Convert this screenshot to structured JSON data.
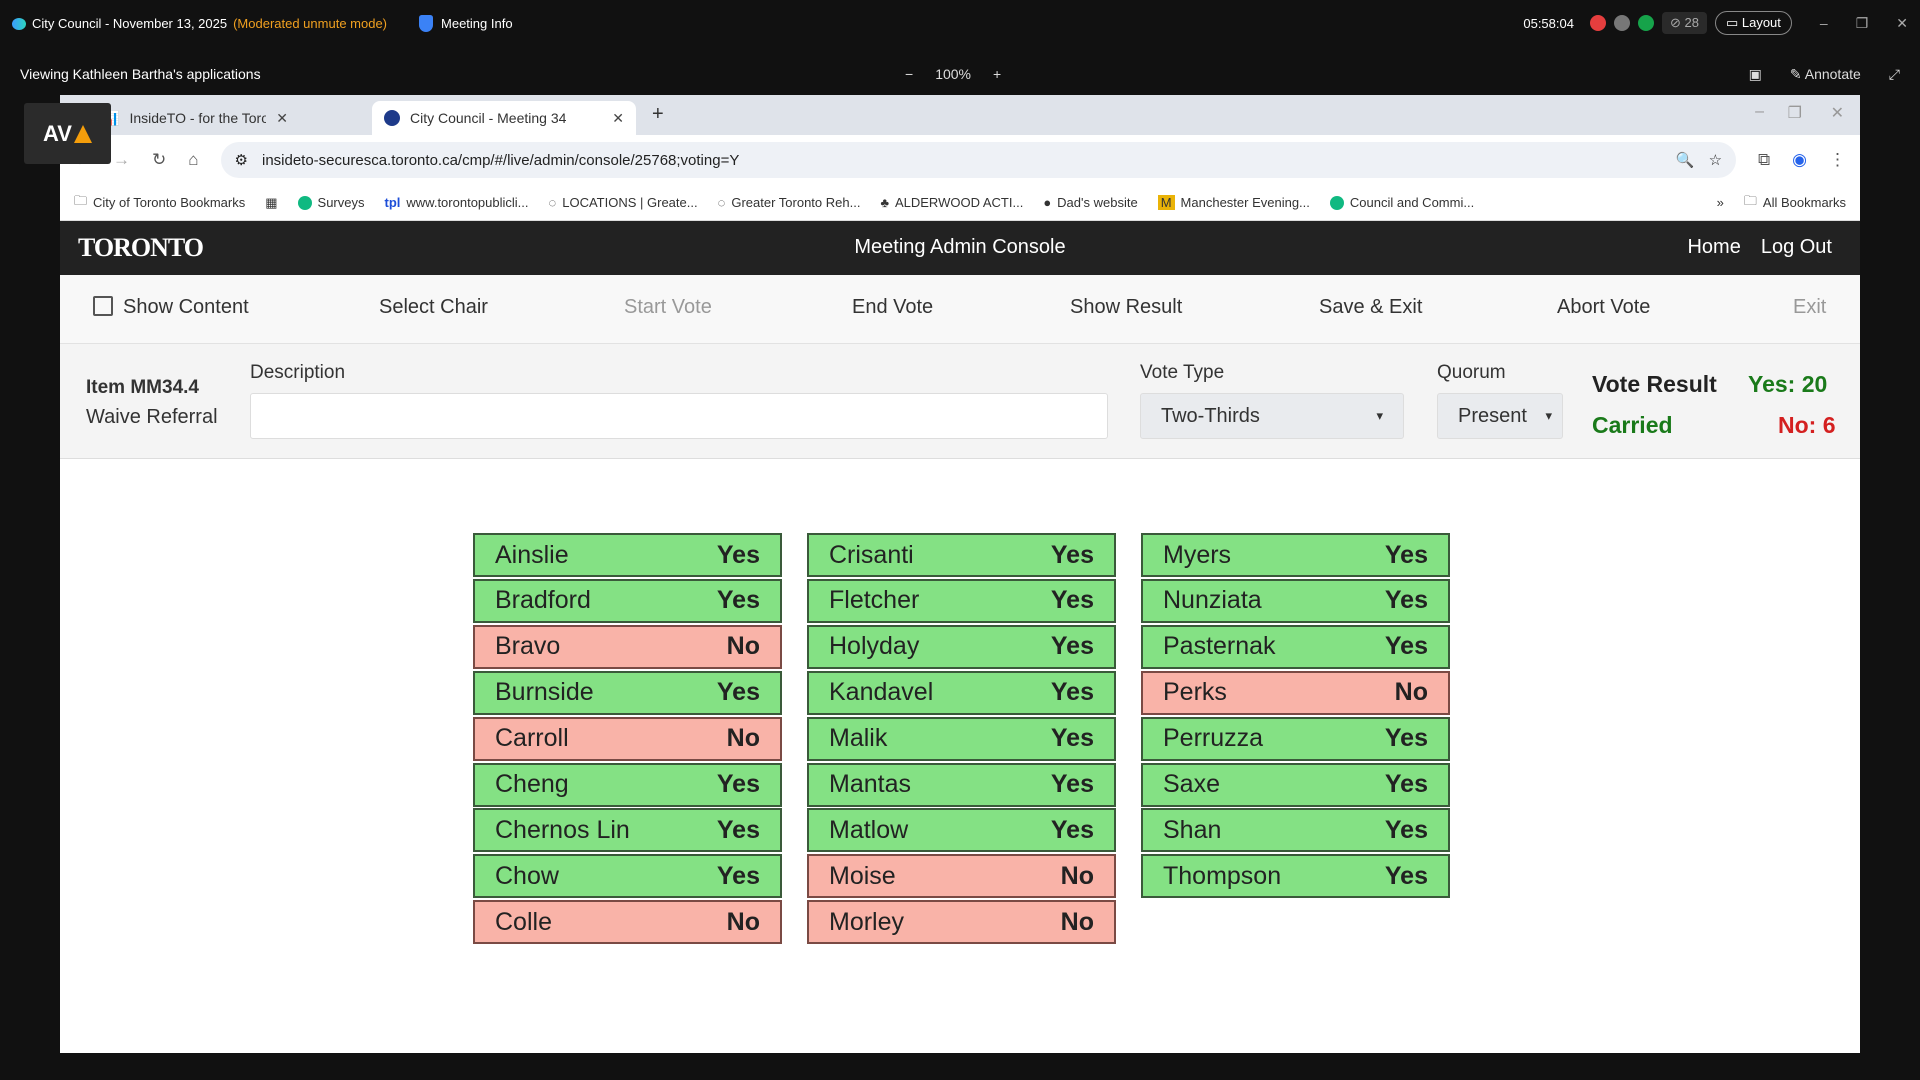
{
  "topbar": {
    "meeting": "City Council - November 13, 2025",
    "mode": "(Moderated unmute mode)",
    "meeting_info": "Meeting Info",
    "time": "05:58:04",
    "participants": "28",
    "layout": "Layout"
  },
  "viewbar": {
    "viewing": "Viewing Kathleen Bartha's applications",
    "zoom": "100%",
    "minus": "−",
    "plus": "+",
    "annotate": "Annotate"
  },
  "av_logo": "AV",
  "browser": {
    "tabs": [
      {
        "label": "InsideTO - for the Toronto Publ"
      },
      {
        "label": "City Council - Meeting 34"
      }
    ],
    "url": "insideto-securesca.toronto.ca/cmp/#/live/admin/console/25768;voting=Y",
    "bookmarks": [
      "City of Toronto Bookmarks",
      "Surveys",
      "www.torontopublicli...",
      "LOCATIONS | Greate...",
      "Greater Toronto Reh...",
      "ALDERWOOD ACTI...",
      "Dad's website",
      "Manchester Evening...",
      "Council and Commi..."
    ],
    "all_bookmarks": "All Bookmarks"
  },
  "console": {
    "logo": "TORONTO",
    "title": "Meeting Admin Console",
    "home": "Home",
    "logout": "Log Out",
    "actions": {
      "show_content": "Show Content",
      "select_chair": "Select Chair",
      "start_vote": "Start Vote",
      "end_vote": "End Vote",
      "show_result": "Show Result",
      "save_exit": "Save & Exit",
      "abort_vote": "Abort Vote",
      "exit": "Exit"
    },
    "item": {
      "id": "Item MM34.4",
      "name": "Waive Referral",
      "description_label": "Description",
      "description": "",
      "vote_type_label": "Vote Type",
      "vote_type": "Two-Thirds",
      "quorum_label": "Quorum",
      "quorum": "Present",
      "result_label": "Vote Result",
      "result": "Carried",
      "yes": "Yes: 20",
      "no": "No: 6"
    },
    "colors": {
      "yes_bg": "#84e184",
      "no_bg": "#f9b3a8",
      "carried": "#1a7a1a",
      "no_text": "#d42020"
    },
    "votes": [
      {
        "name": "Ainslie",
        "vote": "Yes"
      },
      {
        "name": "Bradford",
        "vote": "Yes"
      },
      {
        "name": "Bravo",
        "vote": "No"
      },
      {
        "name": "Burnside",
        "vote": "Yes"
      },
      {
        "name": "Carroll",
        "vote": "No"
      },
      {
        "name": "Cheng",
        "vote": "Yes"
      },
      {
        "name": "Chernos Lin",
        "vote": "Yes"
      },
      {
        "name": "Chow",
        "vote": "Yes"
      },
      {
        "name": "Colle",
        "vote": "No"
      },
      {
        "name": "Crisanti",
        "vote": "Yes"
      },
      {
        "name": "Fletcher",
        "vote": "Yes"
      },
      {
        "name": "Holyday",
        "vote": "Yes"
      },
      {
        "name": "Kandavel",
        "vote": "Yes"
      },
      {
        "name": "Malik",
        "vote": "Yes"
      },
      {
        "name": "Mantas",
        "vote": "Yes"
      },
      {
        "name": "Matlow",
        "vote": "Yes"
      },
      {
        "name": "Moise",
        "vote": "No"
      },
      {
        "name": "Morley",
        "vote": "No"
      },
      {
        "name": "Myers",
        "vote": "Yes"
      },
      {
        "name": "Nunziata",
        "vote": "Yes"
      },
      {
        "name": "Pasternak",
        "vote": "Yes"
      },
      {
        "name": "Perks",
        "vote": "No"
      },
      {
        "name": "Perruzza",
        "vote": "Yes"
      },
      {
        "name": "Saxe",
        "vote": "Yes"
      },
      {
        "name": "Shan",
        "vote": "Yes"
      },
      {
        "name": "Thompson",
        "vote": "Yes"
      }
    ]
  }
}
